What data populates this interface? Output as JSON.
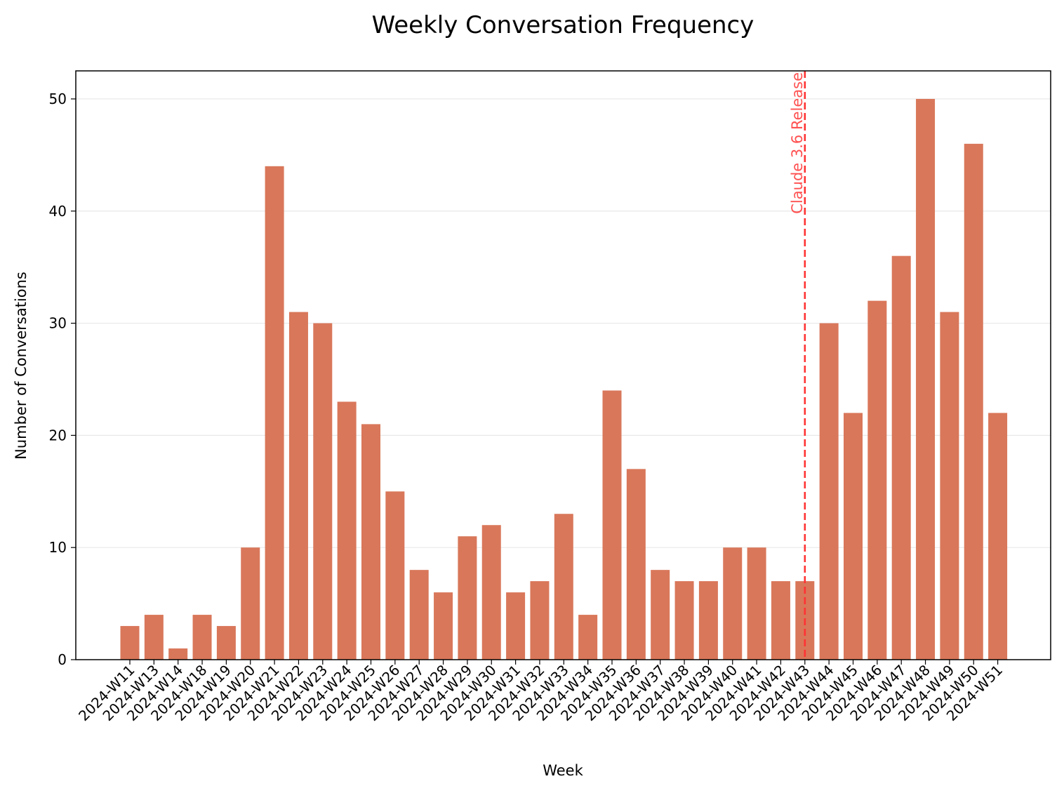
{
  "chart_data": {
    "type": "bar",
    "title": "Weekly Conversation Frequency",
    "xlabel": "Week",
    "ylabel": "Number of Conversations",
    "ylim": [
      0,
      52.5
    ],
    "yticks": [
      0,
      10,
      20,
      30,
      40,
      50
    ],
    "grid": "horizontal",
    "bar_color": "#d9775a",
    "categories": [
      "2024-W11",
      "2024-W13",
      "2024-W14",
      "2024-W18",
      "2024-W19",
      "2024-W20",
      "2024-W21",
      "2024-W22",
      "2024-W23",
      "2024-W24",
      "2024-W25",
      "2024-W26",
      "2024-W27",
      "2024-W28",
      "2024-W29",
      "2024-W30",
      "2024-W31",
      "2024-W32",
      "2024-W33",
      "2024-W34",
      "2024-W35",
      "2024-W36",
      "2024-W37",
      "2024-W38",
      "2024-W39",
      "2024-W40",
      "2024-W41",
      "2024-W42",
      "2024-W43",
      "2024-W44",
      "2024-W45",
      "2024-W46",
      "2024-W47",
      "2024-W48",
      "2024-W49",
      "2024-W50",
      "2024-W51"
    ],
    "values": [
      3,
      4,
      1,
      4,
      3,
      10,
      44,
      31,
      30,
      23,
      21,
      15,
      8,
      6,
      11,
      12,
      6,
      7,
      13,
      4,
      24,
      17,
      8,
      7,
      7,
      10,
      10,
      7,
      7,
      30,
      22,
      32,
      36,
      50,
      31,
      46,
      22
    ],
    "annotation": {
      "text": "Claude 3.6 Release",
      "at_category": "2024-W43",
      "color": "#ff3333",
      "style": "dashed-vertical-line"
    }
  }
}
